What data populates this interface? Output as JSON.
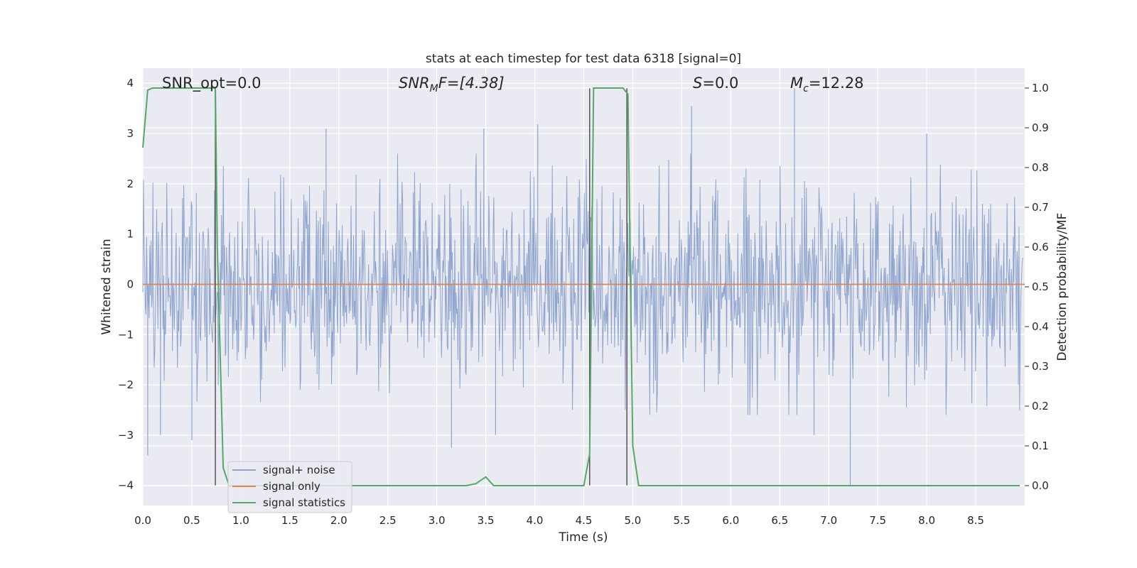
{
  "chart_data": {
    "type": "line",
    "title": "stats at each timestep for test data 6318 [signal=0]",
    "xlabel": "Time (s)",
    "ylabel": "Whitened strain",
    "y2label": "Detection probability/MF",
    "xlim": [
      0.0,
      9.0
    ],
    "ylim": [
      -4.4,
      4.3
    ],
    "y2lim": [
      -0.05,
      1.05
    ],
    "x_ticks": [
      "0.0",
      "0.5",
      "1.0",
      "1.5",
      "2.0",
      "2.5",
      "3.0",
      "3.5",
      "4.0",
      "4.5",
      "5.0",
      "5.5",
      "6.0",
      "6.5",
      "7.0",
      "7.5",
      "8.0",
      "8.5"
    ],
    "y_ticks": [
      "4",
      "3",
      "2",
      "1",
      "0",
      "−1",
      "−2",
      "−3",
      "−4"
    ],
    "y2_ticks": [
      "1.0",
      "0.9",
      "0.8",
      "0.7",
      "0.6",
      "0.5",
      "0.4",
      "0.3",
      "0.2",
      "0.1",
      "0.0"
    ],
    "grid": true,
    "legend_position": "lower-left",
    "annotations": {
      "snr_opt": "SNR_opt=0.0",
      "snr_mf_base": "SNR",
      "snr_mf_sub": "M",
      "snr_mf_tail": "F=[4.38]",
      "s_base": "S",
      "s_tail": "=0.0",
      "mc_base": "M",
      "mc_sub": "c",
      "mc_tail": "=12.28"
    },
    "series": [
      {
        "name": "signal+ noise",
        "color": "#8fa5cd",
        "description_kind": "noise",
        "seed": 6318,
        "n_points": 1400
      },
      {
        "name": "signal only",
        "color": "#dd8452",
        "x": [
          0.0,
          9.0
        ],
        "y": [
          0.0,
          0.0
        ]
      },
      {
        "name": "signal statistics",
        "color": "#55a868",
        "axis": "right",
        "x": [
          0.0,
          0.05,
          0.1,
          0.2,
          0.4,
          0.6,
          0.74,
          0.76,
          0.82,
          0.88,
          1.0,
          1.5,
          2.0,
          2.5,
          3.0,
          3.3,
          3.4,
          3.5,
          3.58,
          3.7,
          4.0,
          4.5,
          4.56,
          4.6,
          4.65,
          4.8,
          4.9,
          4.95,
          5.0,
          5.06,
          5.5,
          6.0,
          7.0,
          8.0,
          8.95
        ],
        "y": [
          0.85,
          0.995,
          1.0,
          1.0,
          1.0,
          1.0,
          1.0,
          0.6,
          0.045,
          0.0,
          0.0,
          0.0,
          0.0,
          0.0,
          0.0,
          0.0,
          0.005,
          0.022,
          0.0,
          0.0,
          0.0,
          0.0,
          0.08,
          1.0,
          1.0,
          1.0,
          1.0,
          0.985,
          0.1,
          0.0,
          0.0,
          0.0,
          0.0,
          0.0,
          0.0
        ]
      }
    ],
    "vlines": [
      {
        "x": 0.74,
        "ymin": -4.0,
        "ymax": 3.9,
        "color": "#555555"
      },
      {
        "x": 4.56,
        "ymin": -4.0,
        "ymax": 3.9,
        "color": "#555555"
      },
      {
        "x": 4.94,
        "ymin": -4.0,
        "ymax": 3.9,
        "color": "#555555"
      }
    ],
    "noise_spikes": [
      {
        "x": 0.05,
        "y": -3.4
      },
      {
        "x": 0.18,
        "y": -3.0
      },
      {
        "x": 0.5,
        "y": -3.1
      },
      {
        "x": 1.87,
        "y": 3.1
      },
      {
        "x": 3.15,
        "y": -3.25
      },
      {
        "x": 3.48,
        "y": 3.1
      },
      {
        "x": 3.6,
        "y": -3.0
      },
      {
        "x": 4.03,
        "y": 3.18
      },
      {
        "x": 5.6,
        "y": 3.55
      },
      {
        "x": 6.65,
        "y": 3.9
      },
      {
        "x": 6.85,
        "y": -3.0
      },
      {
        "x": 7.22,
        "y": -4.0
      },
      {
        "x": 8.0,
        "y": 3.0
      }
    ]
  }
}
